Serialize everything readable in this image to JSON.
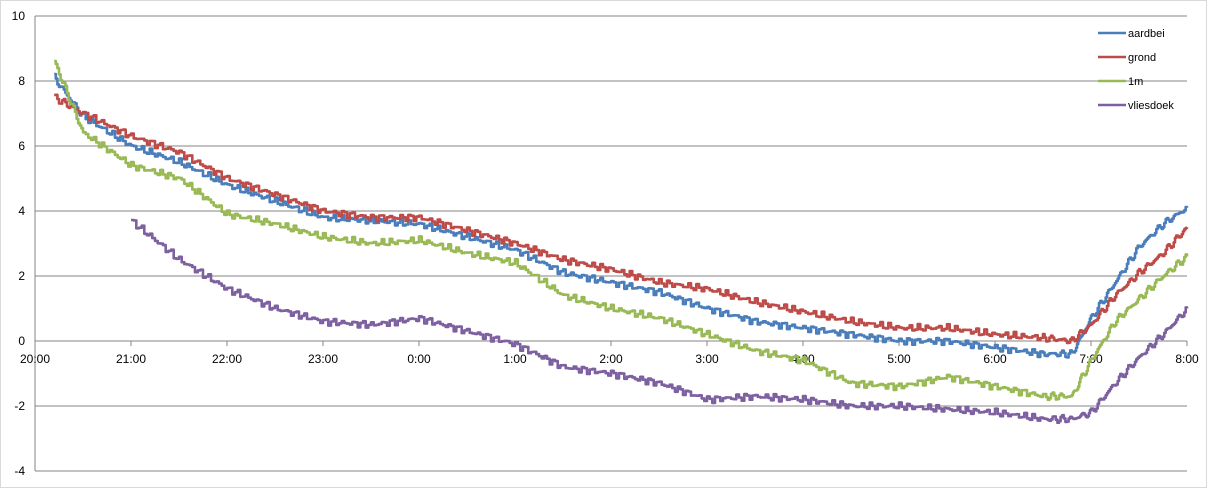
{
  "chart_data": {
    "type": "line",
    "title": "",
    "xlabel": "",
    "ylabel": "",
    "ylim": [
      -4,
      10
    ],
    "y_ticks": [
      "-4",
      "-2",
      "0",
      "2",
      "4",
      "6",
      "8",
      "10"
    ],
    "xlim_hours": [
      20,
      32
    ],
    "x_tick_labels": [
      "20:00",
      "21:00",
      "22:00",
      "23:00",
      "0:00",
      "1:00",
      "2:00",
      "3:00",
      "4:00",
      "5:00",
      "6:00",
      "7:00",
      "8:00"
    ],
    "x_hours": [
      20.2,
      20.5,
      21,
      21.5,
      22,
      22.5,
      23,
      23.5,
      24,
      24.5,
      25,
      25.5,
      26,
      26.5,
      27,
      27.5,
      28,
      28.5,
      29,
      29.5,
      30,
      30.5,
      30.8,
      31,
      31.25,
      31.5,
      31.75,
      32
    ],
    "grid": true,
    "legend_position": "top-right",
    "series": [
      {
        "name": "aardbei",
        "color": "#4a7ebb",
        "values": [
          8.1,
          6.9,
          6.0,
          5.5,
          4.8,
          4.3,
          3.8,
          3.7,
          3.6,
          3.2,
          2.8,
          2.1,
          1.8,
          1.5,
          1.0,
          0.6,
          0.4,
          0.2,
          0.0,
          0.0,
          -0.2,
          -0.4,
          -0.4,
          0.7,
          1.8,
          2.9,
          3.6,
          4.1
        ]
      },
      {
        "name": "grond",
        "color": "#be4b48",
        "values": [
          7.5,
          7.0,
          6.3,
          5.8,
          5.0,
          4.5,
          4.0,
          3.8,
          3.8,
          3.4,
          3.0,
          2.5,
          2.2,
          1.8,
          1.6,
          1.2,
          0.9,
          0.6,
          0.4,
          0.4,
          0.2,
          0.1,
          0.0,
          0.5,
          1.4,
          2.1,
          2.7,
          3.5
        ]
      },
      {
        "name": "1m",
        "color": "#98b954",
        "values": [
          8.6,
          6.4,
          5.4,
          5.0,
          3.9,
          3.6,
          3.2,
          3.0,
          3.1,
          2.7,
          2.4,
          1.4,
          1.0,
          0.7,
          0.2,
          -0.3,
          -0.6,
          -1.3,
          -1.4,
          -1.1,
          -1.4,
          -1.7,
          -1.7,
          -0.6,
          0.6,
          1.3,
          2.0,
          2.6
        ]
      },
      {
        "name": "vliesdoek",
        "color": "#7d60a0",
        "values": [
          null,
          null,
          3.7,
          2.5,
          1.6,
          1.0,
          0.6,
          0.5,
          0.7,
          0.3,
          -0.1,
          -0.8,
          -1.0,
          -1.3,
          -1.8,
          -1.7,
          -1.8,
          -2.0,
          -2.0,
          -2.1,
          -2.2,
          -2.4,
          -2.4,
          -2.2,
          -1.3,
          -0.5,
          0.2,
          1.0
        ]
      }
    ]
  }
}
